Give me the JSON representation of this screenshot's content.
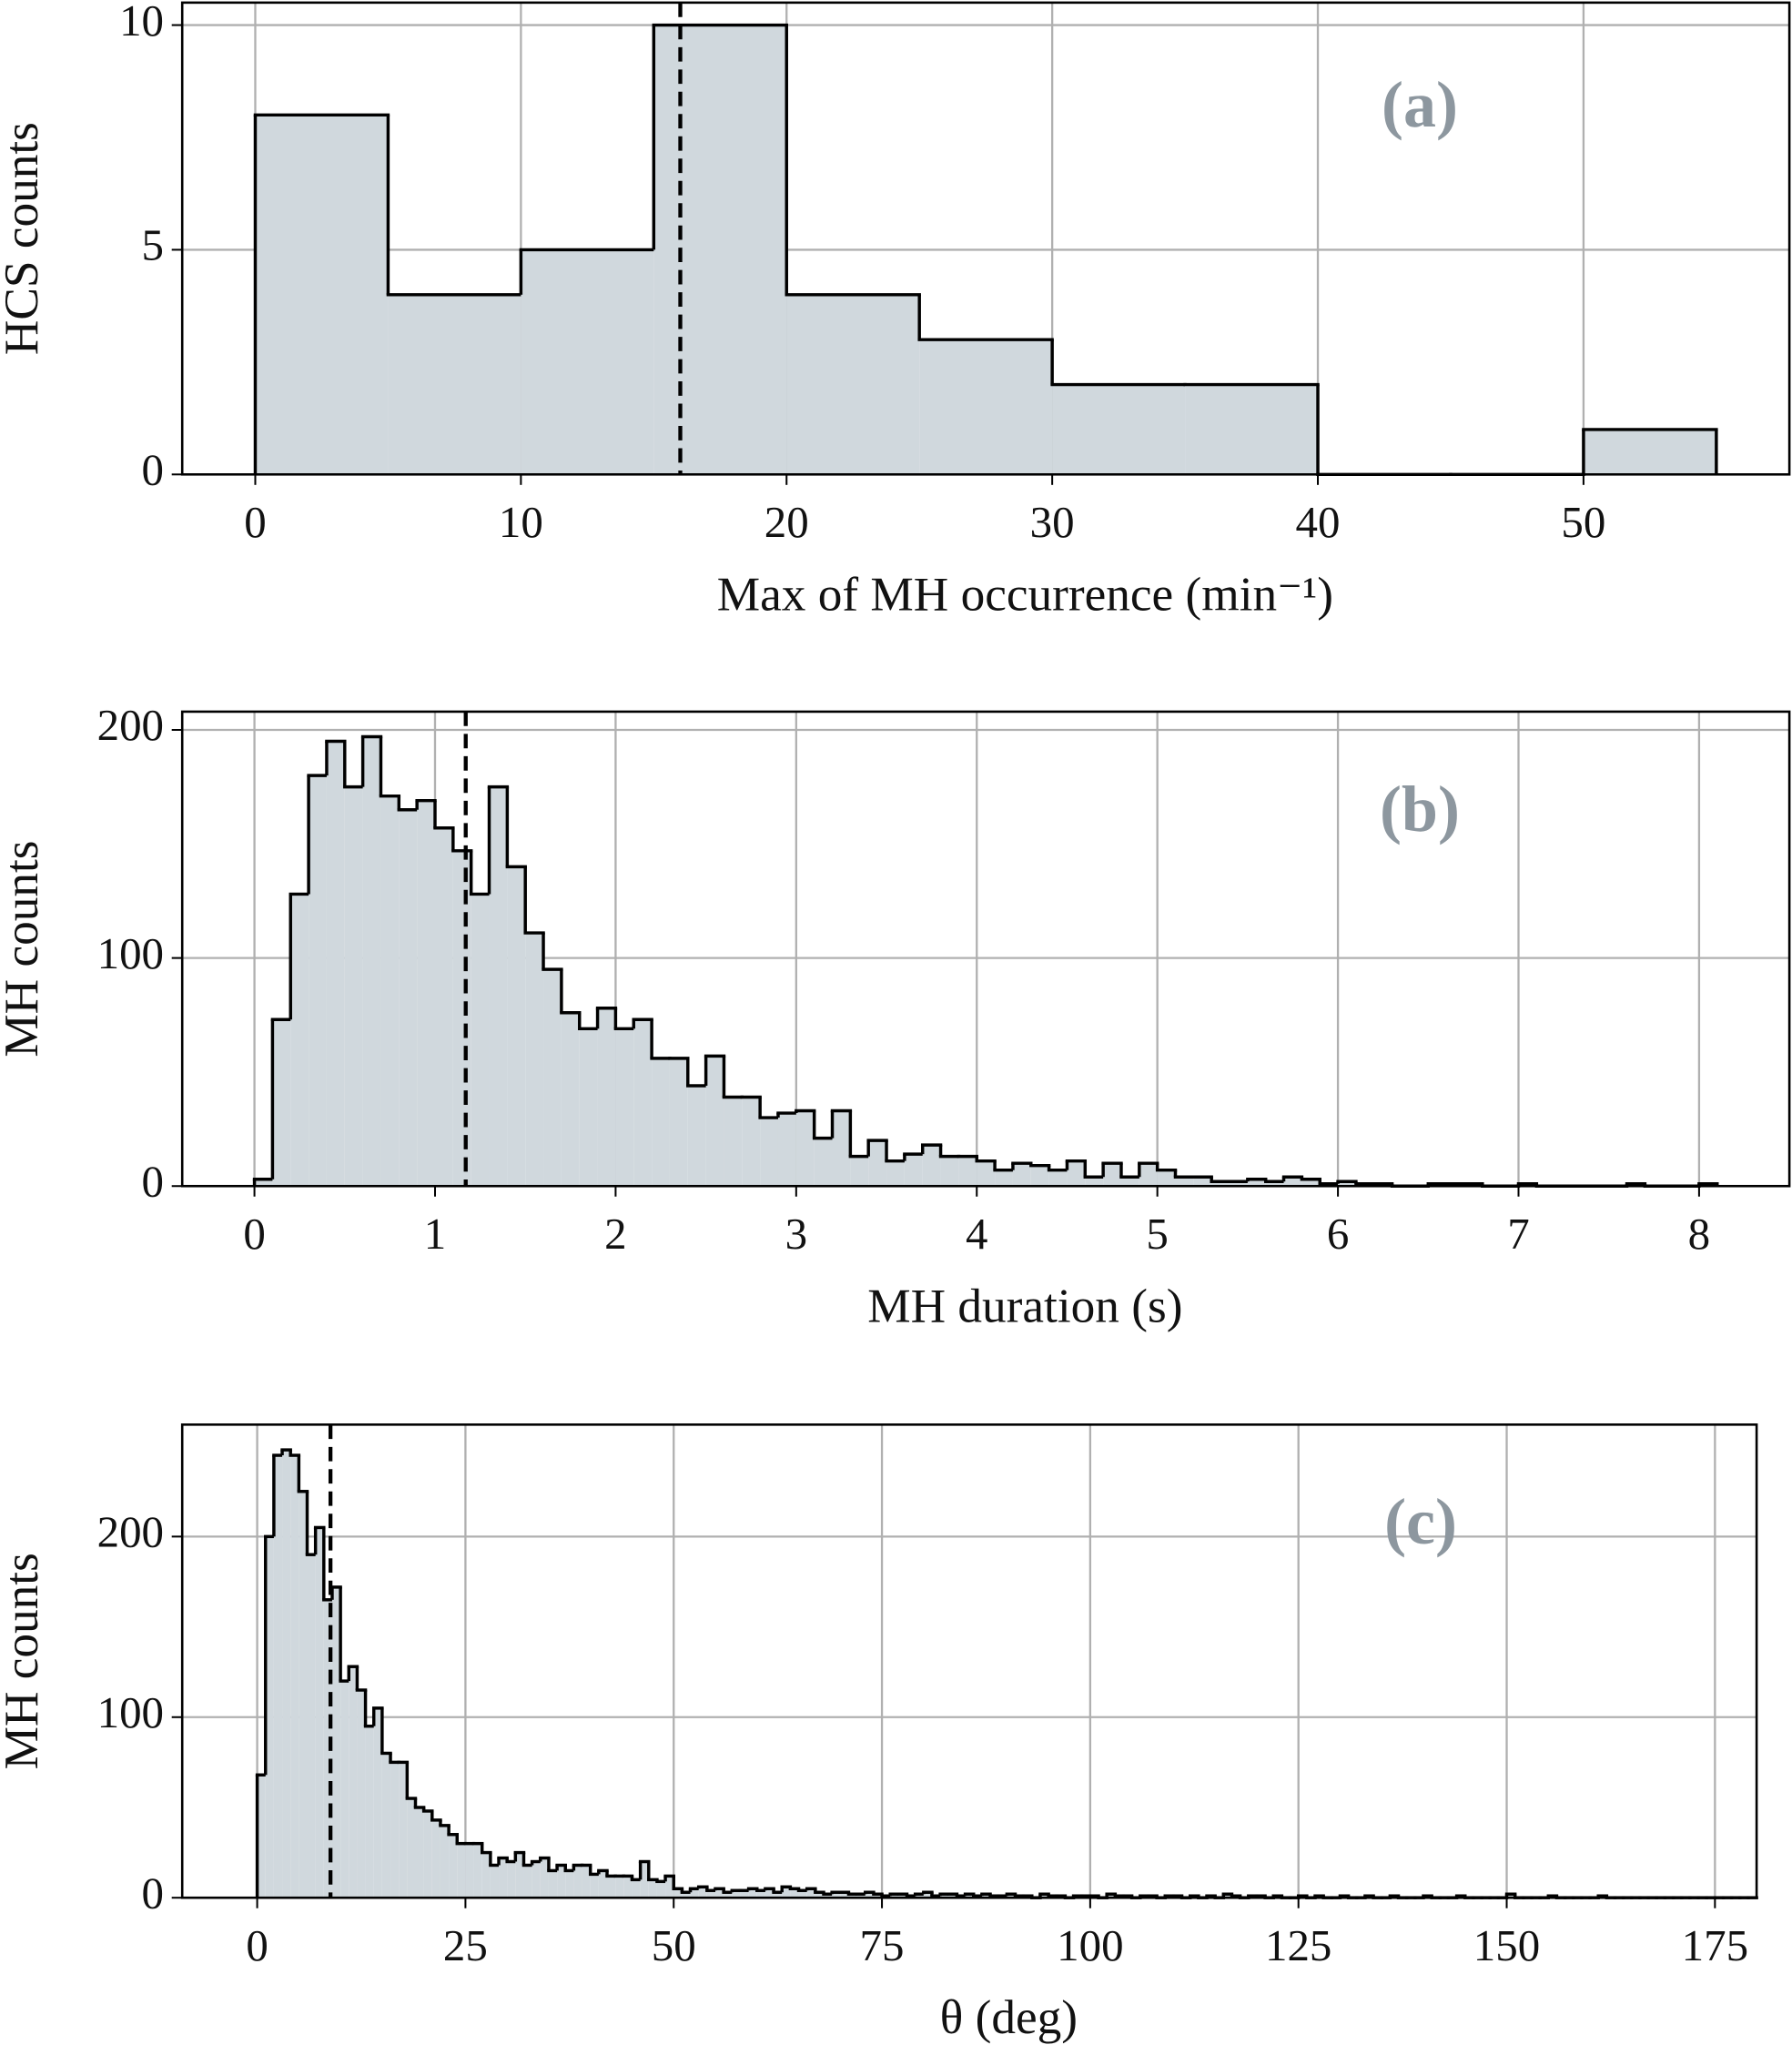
{
  "chart_data": [
    {
      "type": "histogram",
      "panel_label": "(a)",
      "xlabel": "Max of MH occurrence (min⁻¹)",
      "ylabel": "HCS counts",
      "bins": [
        0,
        5,
        10,
        15,
        20,
        25,
        30,
        35,
        40,
        45,
        50,
        55
      ],
      "values": [
        8,
        4,
        5,
        10,
        4,
        3,
        2,
        2,
        0,
        0,
        1
      ],
      "vline": 16,
      "color": "#d0d8dd",
      "edgecolor": "#000000",
      "xlim": [
        -2.75,
        57.75
      ],
      "ylim": [
        0,
        10.5
      ],
      "xticks": [
        0,
        10,
        20,
        30,
        40,
        50
      ],
      "yticks": [
        0,
        5,
        10
      ],
      "grid": true
    },
    {
      "type": "histogram",
      "panel_label": "(b)",
      "xlabel": "MH duration (s)",
      "ylabel": "MH counts",
      "bins": [
        0,
        0.1,
        0.2,
        0.3,
        0.4,
        0.5,
        0.6,
        0.7,
        0.8,
        0.9,
        1,
        1.1,
        1.2,
        1.3,
        1.4,
        1.5,
        1.6,
        1.7,
        1.8,
        1.9,
        2,
        2.1,
        2.2,
        2.3,
        2.4,
        2.5,
        2.6,
        2.7,
        2.8,
        2.9,
        3,
        3.1,
        3.2,
        3.3,
        3.4,
        3.5,
        3.6,
        3.7,
        3.8,
        3.9,
        4,
        4.1,
        4.2,
        4.3,
        4.4,
        4.5,
        4.6,
        4.7,
        4.8,
        4.9,
        5,
        5.1,
        5.2,
        5.3,
        5.4,
        5.5,
        5.6,
        5.7,
        5.8,
        5.9,
        6,
        6.1,
        6.2,
        6.3,
        6.4,
        6.5,
        6.6,
        6.7,
        6.8,
        6.9,
        7,
        7.1,
        7.2,
        7.3,
        7.4,
        7.5,
        7.6,
        7.7,
        7.8,
        7.9,
        8,
        8.1
      ],
      "values": [
        3,
        73,
        128,
        180,
        195,
        175,
        197,
        171,
        165,
        169,
        157,
        147,
        128,
        175,
        140,
        111,
        95,
        76,
        69,
        78,
        69,
        73,
        56,
        56,
        44,
        57,
        39,
        39,
        30,
        32,
        33,
        21,
        33,
        13,
        20,
        11,
        14,
        18,
        13,
        13,
        11,
        7,
        10,
        9,
        7,
        11,
        4,
        10,
        4,
        10,
        7,
        4,
        4,
        2,
        2,
        3,
        2,
        4,
        3,
        1,
        2,
        1,
        1,
        0,
        0,
        1,
        1,
        1,
        0,
        0,
        1,
        0,
        0,
        0,
        0,
        0,
        1,
        0,
        0,
        0,
        1
      ],
      "vline": 1.17,
      "color": "#d0d8dd",
      "edgecolor": "#000000",
      "xlim": [
        -0.4,
        8.5
      ],
      "ylim": [
        0,
        208
      ],
      "xticks": [
        0,
        1,
        2,
        3,
        4,
        5,
        6,
        7,
        8
      ],
      "yticks": [
        0,
        100,
        200
      ],
      "grid": true
    },
    {
      "type": "histogram",
      "panel_label": "(c)",
      "xlabel": "θ (deg)",
      "ylabel": "MH counts",
      "bins": [
        0,
        1,
        2,
        3,
        4,
        5,
        6,
        7,
        8,
        9,
        10,
        11,
        12,
        13,
        14,
        15,
        16,
        17,
        18,
        19,
        20,
        21,
        22,
        23,
        24,
        25,
        26,
        27,
        28,
        29,
        30,
        31,
        32,
        33,
        34,
        35,
        36,
        37,
        38,
        39,
        40,
        41,
        42,
        43,
        44,
        45,
        46,
        47,
        48,
        49,
        50,
        51,
        52,
        53,
        54,
        55,
        56,
        57,
        58,
        59,
        60,
        61,
        62,
        63,
        64,
        65,
        66,
        67,
        68,
        69,
        70,
        71,
        72,
        73,
        74,
        75,
        76,
        77,
        78,
        79,
        80,
        81,
        82,
        83,
        84,
        85,
        86,
        87,
        88,
        89,
        90,
        91,
        92,
        93,
        94,
        95,
        96,
        97,
        98,
        99,
        100,
        101,
        102,
        103,
        104,
        105,
        106,
        107,
        108,
        109,
        110,
        111,
        112,
        113,
        114,
        115,
        116,
        117,
        118,
        119,
        120,
        121,
        122,
        123,
        124,
        125,
        126,
        127,
        128,
        129,
        130,
        131,
        132,
        133,
        134,
        135,
        136,
        137,
        138,
        139,
        140,
        141,
        142,
        143,
        144,
        145,
        146,
        147,
        148,
        149,
        150,
        151,
        152,
        153,
        154,
        155,
        156,
        157,
        158,
        159,
        160,
        161,
        162,
        163,
        164,
        165,
        166,
        167,
        168,
        169,
        170,
        171,
        172,
        173,
        174,
        175,
        176,
        177,
        178,
        179,
        180
      ],
      "values": [
        68,
        200,
        245,
        248,
        245,
        225,
        190,
        205,
        165,
        172,
        120,
        128,
        115,
        95,
        105,
        80,
        75,
        75,
        55,
        50,
        48,
        43,
        40,
        35,
        30,
        30,
        30,
        25,
        18,
        22,
        20,
        25,
        18,
        20,
        22,
        15,
        18,
        15,
        18,
        18,
        13,
        15,
        12,
        12,
        12,
        10,
        20,
        10,
        9,
        12,
        5,
        3,
        5,
        6,
        4,
        5,
        3,
        4,
        4,
        5,
        4,
        5,
        3,
        6,
        5,
        4,
        5,
        3,
        2,
        3,
        3,
        2,
        2,
        3,
        2,
        1,
        2,
        2,
        1,
        2,
        3,
        1,
        2,
        2,
        1,
        2,
        1,
        2,
        1,
        1,
        2,
        1,
        1,
        0,
        2,
        1,
        1,
        0,
        1,
        1,
        1,
        0,
        2,
        1,
        1,
        0,
        1,
        1,
        0,
        1,
        1,
        0,
        1,
        0,
        1,
        0,
        2,
        1,
        0,
        1,
        1,
        0,
        1,
        0,
        0,
        1,
        0,
        1,
        0,
        0,
        1,
        0,
        0,
        1,
        0,
        0,
        1,
        0,
        0,
        0,
        1,
        0,
        0,
        0,
        1,
        0,
        0,
        0,
        0,
        0,
        2,
        0,
        0,
        0,
        0,
        1,
        0,
        0,
        0,
        0,
        0,
        1,
        0,
        0,
        0,
        0,
        0,
        0,
        0,
        0,
        0,
        0,
        0,
        0,
        0,
        0,
        0,
        0,
        0,
        0
      ],
      "vline": 8.8,
      "color": "#d0d8dd",
      "edgecolor": "#000000",
      "xlim": [
        -9,
        180
      ],
      "ylim": [
        0,
        262
      ],
      "xticks": [
        0,
        25,
        50,
        75,
        100,
        125,
        150,
        175
      ],
      "yticks": [
        0,
        100,
        200
      ],
      "grid": true
    }
  ]
}
